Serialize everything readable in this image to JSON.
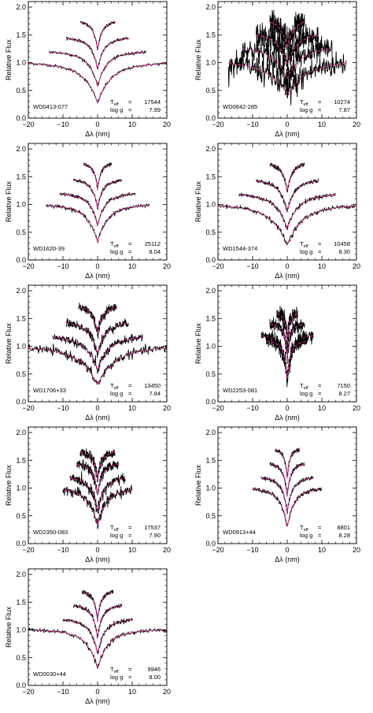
{
  "chart_data": [
    {
      "type": "line",
      "star": "WD0413-077",
      "teff_label": "T",
      "teff_sub": "eff",
      "teff_eq": "=",
      "teff": "17544",
      "logg_label": "log g",
      "logg_eq": "=",
      "logg": "7.99",
      "xlabel": "Δλ (nm)",
      "ylabel": "Relative Flux",
      "xlim": [
        -20,
        20
      ],
      "ylim": [
        0,
        2.1
      ],
      "xticks": [
        "−20",
        "−10",
        "0",
        "10",
        "20"
      ],
      "yticks": [
        "0.0",
        "0.5",
        "1.0",
        "1.5",
        "2.0"
      ],
      "series": [
        {
          "halfwidth": 20,
          "offset": 0.0,
          "depth": 0.65,
          "width": 3.5
        },
        {
          "halfwidth": 14,
          "offset": 0.2,
          "depth": 0.55,
          "width": 2.2
        },
        {
          "halfwidth": 9,
          "offset": 0.45,
          "depth": 0.5,
          "width": 1.5
        },
        {
          "halfwidth": 5,
          "offset": 0.75,
          "depth": 0.45,
          "width": 1.0
        }
      ],
      "noise": 0.01
    },
    {
      "type": "line",
      "star": "WD0642-285",
      "teff_label": "T",
      "teff_sub": "eff",
      "teff_eq": "=",
      "teff": "10274",
      "logg_label": "log g",
      "logg_eq": "=",
      "logg": "7.87",
      "xlabel": "Δλ (nm)",
      "ylabel": "Relative Flux",
      "xlim": [
        -20,
        20
      ],
      "ylim": [
        0,
        2.1
      ],
      "xticks": [
        "−20",
        "−10",
        "0",
        "10",
        "20"
      ],
      "yticks": [
        "0.0",
        "0.5",
        "1.0",
        "1.5",
        "2.0"
      ],
      "series": [
        {
          "halfwidth": 17,
          "offset": 0.05,
          "depth": 0.55,
          "width": 5
        },
        {
          "halfwidth": 13,
          "offset": 0.3,
          "depth": 0.5,
          "width": 3.5
        },
        {
          "halfwidth": 9,
          "offset": 0.55,
          "depth": 0.5,
          "width": 2.5
        },
        {
          "halfwidth": 5,
          "offset": 0.8,
          "depth": 0.45,
          "width": 1.6
        }
      ],
      "noise": 0.09
    },
    {
      "type": "line",
      "star": "WD1620-39",
      "teff_label": "T",
      "teff_sub": "eff",
      "teff_eq": "=",
      "teff": "25112",
      "logg_label": "log g",
      "logg_eq": "=",
      "logg": "8.04",
      "xlabel": "Δλ (nm)",
      "ylabel": "Relative Flux",
      "xlim": [
        -20,
        20
      ],
      "ylim": [
        0,
        2.1
      ],
      "xticks": [
        "−20",
        "−10",
        "0",
        "10",
        "20"
      ],
      "yticks": [
        "0.0",
        "0.5",
        "1.0",
        "1.5",
        "2.0"
      ],
      "series": [
        {
          "halfwidth": 15,
          "offset": 0.0,
          "depth": 0.6,
          "width": 2.6
        },
        {
          "halfwidth": 11,
          "offset": 0.2,
          "depth": 0.5,
          "width": 1.8
        },
        {
          "halfwidth": 7,
          "offset": 0.45,
          "depth": 0.45,
          "width": 1.2
        },
        {
          "halfwidth": 4,
          "offset": 0.75,
          "depth": 0.4,
          "width": 0.8
        }
      ],
      "noise": 0.012
    },
    {
      "type": "line",
      "star": "WD1544-374",
      "teff_label": "T",
      "teff_sub": "eff",
      "teff_eq": "=",
      "teff": "10458",
      "logg_label": "log g",
      "logg_eq": "=",
      "logg": "8.30",
      "xlabel": "Δλ (nm)",
      "ylabel": "Relative Flux",
      "xlim": [
        -20,
        20
      ],
      "ylim": [
        0,
        2.1
      ],
      "xticks": [
        "−20",
        "−10",
        "0",
        "10",
        "20"
      ],
      "yticks": [
        "0.0",
        "0.5",
        "1.0",
        "1.5",
        "2.0"
      ],
      "series": [
        {
          "halfwidth": 20,
          "offset": 0.0,
          "depth": 0.65,
          "width": 4
        },
        {
          "halfwidth": 14,
          "offset": 0.2,
          "depth": 0.55,
          "width": 2.8
        },
        {
          "halfwidth": 9,
          "offset": 0.45,
          "depth": 0.5,
          "width": 1.8
        },
        {
          "halfwidth": 5,
          "offset": 0.75,
          "depth": 0.45,
          "width": 1.1
        }
      ],
      "noise": 0.015
    },
    {
      "type": "line",
      "star": "WD1706+33",
      "teff_label": "T",
      "teff_sub": "eff",
      "teff_eq": "=",
      "teff": "13450",
      "logg_label": "log g",
      "logg_eq": "=",
      "logg": "7.84",
      "xlabel": "Δλ (nm)",
      "ylabel": "Relative Flux",
      "xlim": [
        -20,
        20
      ],
      "ylim": [
        0,
        2.1
      ],
      "xticks": [
        "−20",
        "−10",
        "0",
        "10",
        "20"
      ],
      "yticks": [
        "0.0",
        "0.5",
        "1.0",
        "1.5",
        "2.0"
      ],
      "series": [
        {
          "halfwidth": 20,
          "offset": 0.0,
          "depth": 0.62,
          "width": 4.5
        },
        {
          "halfwidth": 13,
          "offset": 0.2,
          "depth": 0.55,
          "width": 3
        },
        {
          "halfwidth": 9,
          "offset": 0.45,
          "depth": 0.5,
          "width": 2
        },
        {
          "halfwidth": 5.5,
          "offset": 0.75,
          "depth": 0.45,
          "width": 1.3
        }
      ],
      "noise": 0.03
    },
    {
      "type": "line",
      "star": "WD2253-081",
      "teff_label": "T",
      "teff_sub": "eff",
      "teff_eq": "=",
      "teff": "7150",
      "logg_label": "log g",
      "logg_eq": "=",
      "logg": "8.27",
      "xlabel": "Δλ (nm)",
      "ylabel": "Relative Flux",
      "xlim": [
        -20,
        20
      ],
      "ylim": [
        0,
        2.1
      ],
      "xticks": [
        "−20",
        "−10",
        "0",
        "10",
        "20"
      ],
      "yticks": [
        "0.0",
        "0.5",
        "1.0",
        "1.5",
        "2.0"
      ],
      "series": [
        {
          "halfwidth": 7.5,
          "offset": 0.2,
          "depth": 0.7,
          "width": 1.2
        },
        {
          "halfwidth": 6,
          "offset": 0.1,
          "depth": 0.6,
          "width": 0.9
        },
        {
          "halfwidth": 5,
          "offset": 0.4,
          "depth": 0.5,
          "width": 0.7
        },
        {
          "halfwidth": 3,
          "offset": 0.6,
          "depth": 0.45,
          "width": 0.5
        }
      ],
      "noise": 0.05
    },
    {
      "type": "line",
      "star": "WD2350-083",
      "teff_label": "T",
      "teff_sub": "eff",
      "teff_eq": "=",
      "teff": "17537",
      "logg_label": "log g",
      "logg_eq": "=",
      "logg": "7.90",
      "xlabel": "Δλ (nm)",
      "ylabel": "Relative Flux",
      "xlim": [
        -20,
        20
      ],
      "ylim": [
        0,
        2.1
      ],
      "xticks": [
        "−20",
        "−10",
        "0",
        "10",
        "20"
      ],
      "yticks": [
        "0.0",
        "0.5",
        "1.0",
        "1.5",
        "2.0"
      ],
      "series": [
        {
          "halfwidth": 10,
          "offset": 0.0,
          "depth": 0.6,
          "width": 2.2
        },
        {
          "halfwidth": 8,
          "offset": 0.2,
          "depth": 0.55,
          "width": 1.6
        },
        {
          "halfwidth": 6,
          "offset": 0.45,
          "depth": 0.5,
          "width": 1.1
        },
        {
          "halfwidth": 5,
          "offset": 0.65,
          "depth": 0.45,
          "width": 0.8
        }
      ],
      "noise": 0.035
    },
    {
      "type": "line",
      "star": "WD0913+44",
      "teff_label": "T",
      "teff_sub": "eff",
      "teff_eq": "=",
      "teff": "8801",
      "logg_label": "log g",
      "logg_eq": "=",
      "logg": "8.28",
      "xlabel": "Δλ (nm)",
      "ylabel": "Relative Flux",
      "xlim": [
        -20,
        20
      ],
      "ylim": [
        0,
        2.1
      ],
      "xticks": [
        "−20",
        "−10",
        "0",
        "10",
        "20"
      ],
      "yticks": [
        "0.0",
        "0.5",
        "1.0",
        "1.5",
        "2.0"
      ],
      "series": [
        {
          "halfwidth": 10,
          "offset": 0.0,
          "depth": 0.62,
          "width": 1.8
        },
        {
          "halfwidth": 7.5,
          "offset": 0.2,
          "depth": 0.55,
          "width": 1.3
        },
        {
          "halfwidth": 5,
          "offset": 0.45,
          "depth": 0.5,
          "width": 0.9
        },
        {
          "halfwidth": 3.5,
          "offset": 0.7,
          "depth": 0.45,
          "width": 0.6
        }
      ],
      "noise": 0.015
    },
    {
      "type": "line",
      "star": "WD0030+44",
      "teff_label": "T",
      "teff_sub": "eff",
      "teff_eq": "=",
      "teff": "9946",
      "logg_label": "log g",
      "logg_eq": "=",
      "logg": "8.00",
      "xlabel": "Δλ (nm)",
      "ylabel": "Relative Flux",
      "xlim": [
        -20,
        20
      ],
      "ylim": [
        0,
        2.1
      ],
      "xticks": [
        "−20",
        "−10",
        "0",
        "10",
        "20"
      ],
      "yticks": [
        "0.0",
        "0.5",
        "1.0",
        "1.5",
        "2.0"
      ],
      "series": [
        {
          "halfwidth": 20,
          "offset": 0.0,
          "depth": 0.62,
          "width": 2.6
        },
        {
          "halfwidth": 10,
          "offset": 0.2,
          "depth": 0.55,
          "width": 1.8
        },
        {
          "halfwidth": 7,
          "offset": 0.45,
          "depth": 0.5,
          "width": 1.2
        },
        {
          "halfwidth": 4.5,
          "offset": 0.7,
          "depth": 0.45,
          "width": 0.8
        }
      ],
      "noise": 0.015
    }
  ],
  "colors": {
    "observed": "#000000",
    "model": "#e0309a",
    "axes": "#000000"
  }
}
